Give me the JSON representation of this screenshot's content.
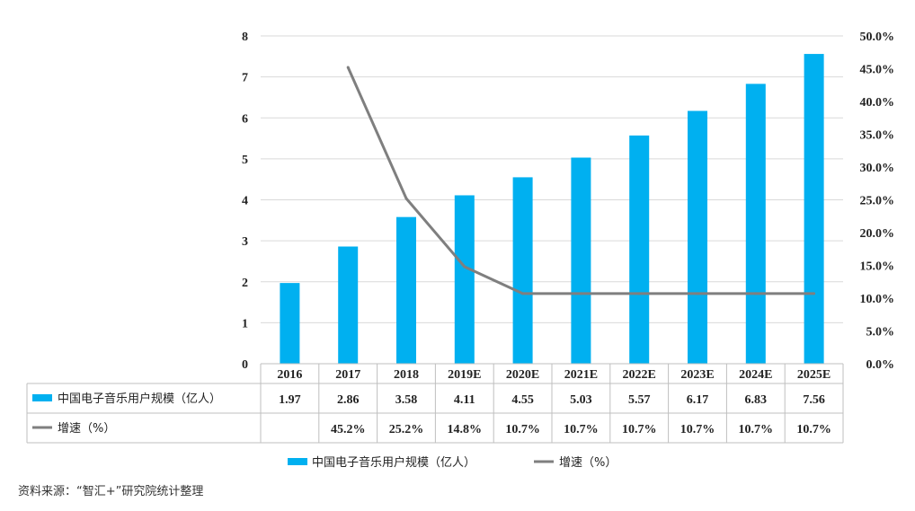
{
  "chart_data": {
    "type": "bar",
    "categories": [
      "2016",
      "2017",
      "2018",
      "2019E",
      "2020E",
      "2021E",
      "2022E",
      "2023E",
      "2024E",
      "2025E"
    ],
    "series": [
      {
        "name": "中国电子音乐用户规模（亿人）",
        "type": "bar",
        "axis": "left",
        "color": "#00b0f0",
        "values": [
          1.97,
          2.86,
          3.58,
          4.11,
          4.55,
          5.03,
          5.57,
          6.17,
          6.83,
          7.56
        ],
        "labels": [
          "1.97",
          "2.86",
          "3.58",
          "4.11",
          "4.55",
          "5.03",
          "5.57",
          "6.17",
          "6.83",
          "7.56"
        ]
      },
      {
        "name": "增速（%）",
        "type": "line",
        "axis": "right",
        "color": "#7f7f7f",
        "values": [
          null,
          45.2,
          25.2,
          14.8,
          10.7,
          10.7,
          10.7,
          10.7,
          10.7,
          10.7
        ],
        "labels": [
          "",
          "45.2%",
          "25.2%",
          "14.8%",
          "10.7%",
          "10.7%",
          "10.7%",
          "10.7%",
          "10.7%",
          "10.7%"
        ]
      }
    ],
    "ylim": [
      0,
      8
    ],
    "yticks": [
      "0",
      "1",
      "2",
      "3",
      "4",
      "5",
      "6",
      "7",
      "8"
    ],
    "y2lim": [
      0,
      50
    ],
    "y2ticks": [
      "0.0%",
      "5.0%",
      "10.0%",
      "15.0%",
      "20.0%",
      "25.0%",
      "30.0%",
      "35.0%",
      "40.0%",
      "45.0%",
      "50.0%"
    ],
    "grid": true,
    "data_table": true,
    "legend_position": "bottom"
  },
  "source": "资料来源：“智汇+”研究院统计整理"
}
